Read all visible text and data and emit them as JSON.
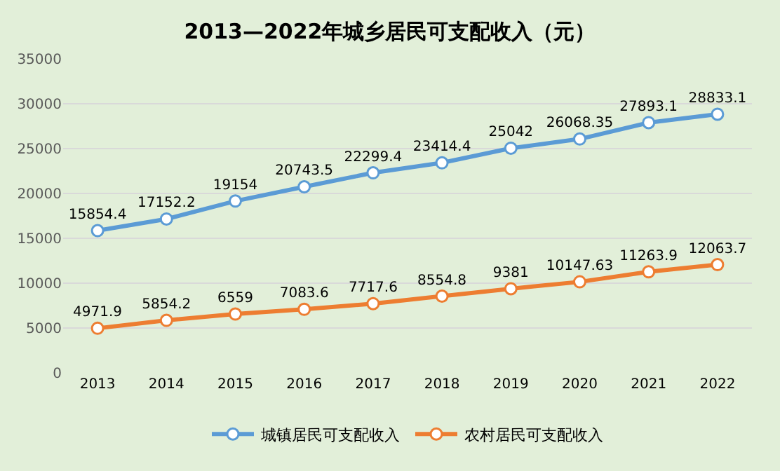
{
  "chart_data": {
    "type": "line",
    "title": "2013—2022年城乡居民可支配收入（元）",
    "categories": [
      "2013",
      "2014",
      "2015",
      "2016",
      "2017",
      "2018",
      "2019",
      "2020",
      "2021",
      "2022"
    ],
    "series": [
      {
        "name": "城镇居民可支配收入",
        "color": "#5b9bd5",
        "values": [
          15854.4,
          17152.2,
          19154,
          20743.5,
          22299.4,
          23414.4,
          25042,
          26068.35,
          27893.1,
          28833.1
        ]
      },
      {
        "name": "农村居民可支配收入",
        "color": "#ed7d31",
        "values": [
          4971.9,
          5854.2,
          6559,
          7083.6,
          7717.6,
          8554.8,
          9381,
          10147.63,
          11263.9,
          12063.7
        ]
      }
    ],
    "ylim": [
      0,
      35000
    ],
    "yticks": [
      0,
      5000,
      10000,
      15000,
      20000,
      25000,
      30000,
      35000
    ],
    "grid": "y",
    "legend": "bottom",
    "marker": "circle",
    "line_style": "solid",
    "data_labels": true
  }
}
